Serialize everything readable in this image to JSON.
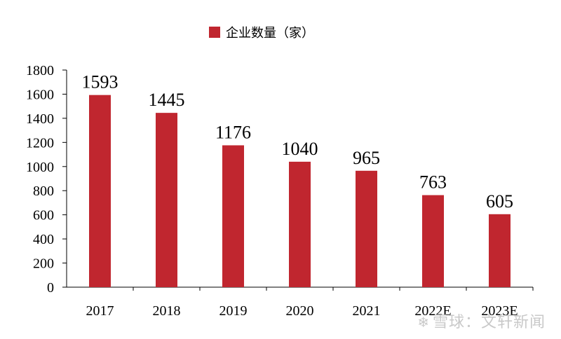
{
  "chart_data": {
    "type": "bar",
    "categories": [
      "2017",
      "2018",
      "2019",
      "2020",
      "2021",
      "2022E",
      "2023E"
    ],
    "series": [
      {
        "name": "企业数量（家）",
        "values": [
          1593,
          1445,
          1176,
          1040,
          965,
          763,
          605
        ]
      }
    ],
    "data_labels": [
      "1593",
      "1445",
      "1176",
      "1040",
      "965",
      "763",
      "605"
    ],
    "ylim": [
      0,
      1800
    ],
    "yticks": [
      0,
      200,
      400,
      600,
      800,
      1000,
      1200,
      1400,
      1600,
      1800
    ],
    "grid": false,
    "legend_position": "top-center",
    "colors": {
      "bar": "#c0262f",
      "axis": "#000000",
      "text": "#000000"
    }
  },
  "watermark": {
    "text": "雪球：文轩新闻",
    "icon": "snowball-logo-icon"
  }
}
